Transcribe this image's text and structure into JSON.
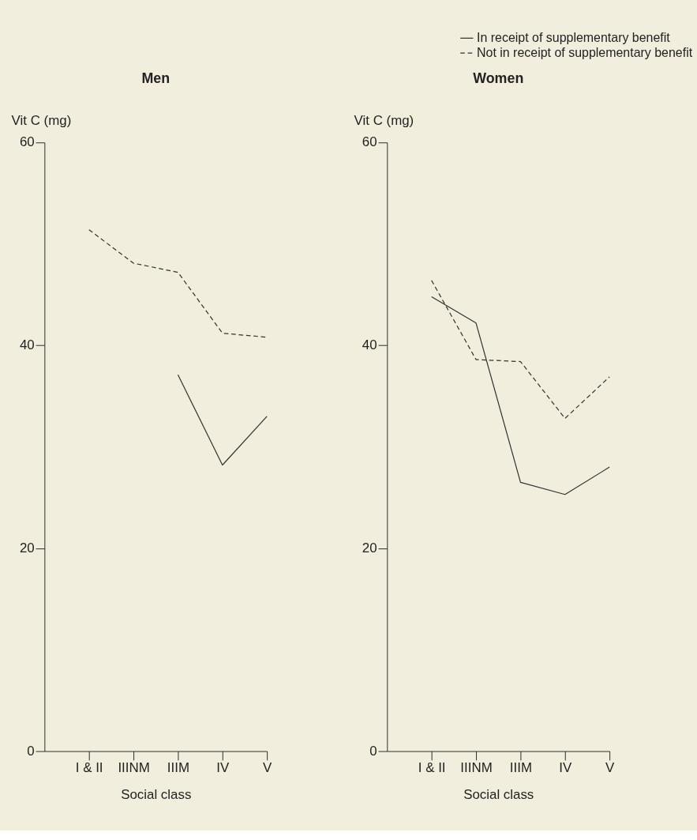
{
  "chart_data": [
    {
      "type": "line",
      "title": "Men",
      "xlabel": "Social class",
      "ylabel": "Vit C (mg)",
      "categories": [
        "I & II",
        "IIINM",
        "IIIM",
        "IV",
        "V"
      ],
      "ylim": [
        0,
        60
      ],
      "yticks": [
        0,
        20,
        40,
        60
      ],
      "grid": false,
      "legend": "top right",
      "marker": "none",
      "series": [
        {
          "name": "In receipt of supplementary benefit",
          "color": "#333333",
          "line_style": "solid",
          "values": [
            null,
            null,
            37.1,
            28.2,
            33.0
          ]
        },
        {
          "name": "Not in receipt of supplementary benefit",
          "color": "#333333",
          "line_style": "dashed",
          "values": [
            51.4,
            48.1,
            47.2,
            41.2,
            40.8
          ]
        }
      ]
    },
    {
      "type": "line",
      "title": "Women",
      "xlabel": "Social class",
      "ylabel": "Vit C (mg)",
      "categories": [
        "I & II",
        "IIINM",
        "IIIM",
        "IV",
        "V"
      ],
      "ylim": [
        0,
        60
      ],
      "yticks": [
        0,
        20,
        40,
        60
      ],
      "grid": false,
      "legend": "top right",
      "marker": "none",
      "series": [
        {
          "name": "In receipt of supplementary benefit",
          "color": "#333333",
          "line_style": "solid",
          "values": [
            44.8,
            42.2,
            26.5,
            25.3,
            28.0
          ]
        },
        {
          "name": "Not in receipt of supplementary benefit",
          "color": "#333333",
          "line_style": "dashed",
          "values": [
            46.4,
            38.6,
            38.4,
            32.8,
            36.9
          ]
        }
      ]
    }
  ]
}
